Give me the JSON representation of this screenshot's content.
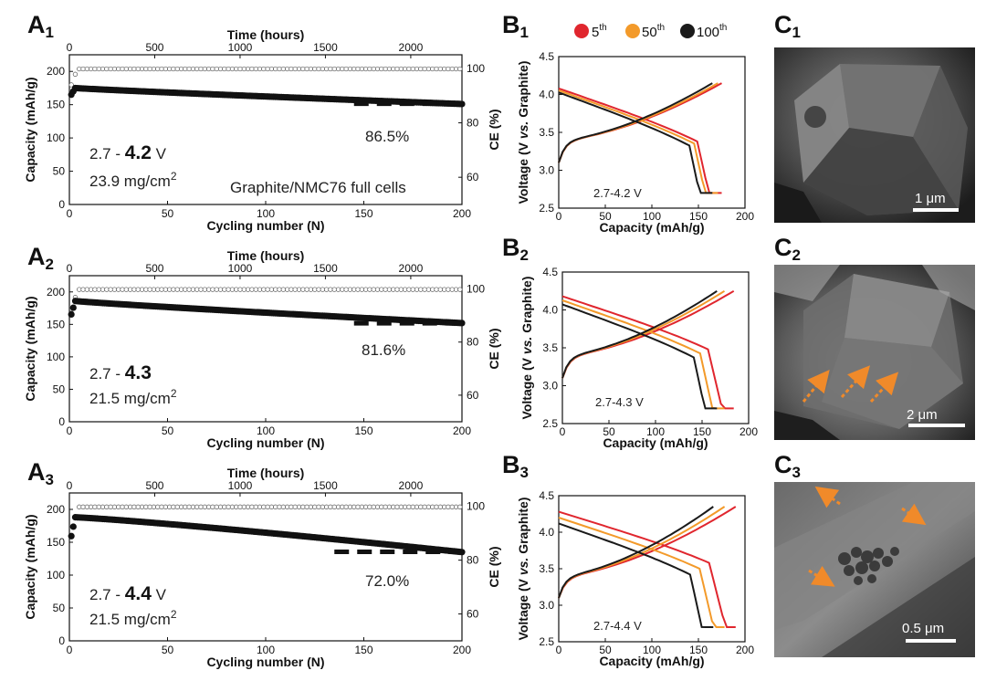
{
  "panels": {
    "A1": {
      "letter": "A",
      "num": "1",
      "ratio_prefix": "2.7 - ",
      "ratio_bold": "4.2",
      "ratio_unit": " V",
      "loading": "23.9 mg/cm",
      "loading_sup": "2",
      "retention": "86.5%",
      "cells_label": "Graphite/NMC76 full cells"
    },
    "A2": {
      "letter": "A",
      "num": "2",
      "ratio_prefix": "2.7 - ",
      "ratio_bold": "4.3",
      "ratio_unit": "",
      "loading": "21.5 mg/cm",
      "loading_sup": "2",
      "retention": "81.6%"
    },
    "A3": {
      "letter": "A",
      "num": "3",
      "ratio_prefix": "2.7 - ",
      "ratio_bold": "4.4",
      "ratio_unit": " V",
      "loading": "21.5 mg/cm",
      "loading_sup": "2",
      "retention": "72.0%"
    },
    "B1": {
      "letter": "B",
      "num": "1",
      "window": "2.7-4.2 V"
    },
    "B2": {
      "letter": "B",
      "num": "2",
      "window": "2.7-4.3 V"
    },
    "B3": {
      "letter": "B",
      "num": "3",
      "window": "2.7-4.4 V"
    },
    "C1": {
      "letter": "C",
      "num": "1",
      "scale": "1 μm"
    },
    "C2": {
      "letter": "C",
      "num": "2",
      "scale": "2 μm"
    },
    "C3": {
      "letter": "C",
      "num": "3",
      "scale": "0.5 μm"
    }
  },
  "labels": {
    "cycling_x": "Cycling number (N)",
    "time_x": "Time (hours)",
    "capacity_y": "Capacity (mAh/g)",
    "ce_y": "CE (%)",
    "voltage_y_pre": "Voltage (V ",
    "voltage_y_it": "vs.",
    "voltage_y_post": " Graphite)",
    "capacity_x": "Capacity (mAh/g)"
  },
  "legend": [
    {
      "label": "5",
      "sup": "th",
      "color": "#e0262e"
    },
    {
      "label": "50",
      "sup": "th",
      "color": "#f39a2a"
    },
    {
      "label": "100",
      "sup": "th",
      "color": "#1a1a1a"
    }
  ],
  "colors": {
    "red": "#e0262e",
    "orange": "#f39a2a",
    "black": "#1a1a1a",
    "arrow": "#f08a2a"
  },
  "chart_data": [
    {
      "id": "A1",
      "type": "scatter",
      "xlabel": "Cycling number (N)",
      "ylabel": "Capacity (mAh/g)",
      "y2label": "CE (%)",
      "top_xlabel": "Time (hours)",
      "xlim": [
        0,
        200
      ],
      "ylim": [
        0,
        225
      ],
      "y2ticks": [
        60,
        80,
        100
      ],
      "top_ticks": [
        0,
        500,
        1000,
        1500,
        2000
      ],
      "top_xlim": [
        0,
        2300
      ],
      "xticks": [
        0,
        50,
        100,
        150,
        200
      ],
      "yticks": [
        0,
        50,
        100,
        150,
        200
      ],
      "capacity": {
        "start": 175,
        "end": 151,
        "initial_low": 160
      },
      "ce": {
        "start": 92,
        "plateau": 99.8
      },
      "retention_percent": 86.5
    },
    {
      "id": "A2",
      "type": "scatter",
      "xlabel": "Cycling number (N)",
      "ylabel": "Capacity (mAh/g)",
      "y2label": "CE (%)",
      "top_xlabel": "Time (hours)",
      "xlim": [
        0,
        200
      ],
      "ylim": [
        0,
        225
      ],
      "y2ticks": [
        60,
        80,
        100
      ],
      "top_ticks": [
        0,
        500,
        1000,
        1500,
        2000
      ],
      "top_xlim": [
        0,
        2300
      ],
      "xticks": [
        0,
        50,
        100,
        150,
        200
      ],
      "yticks": [
        0,
        50,
        100,
        150,
        200
      ],
      "capacity": {
        "start": 186,
        "end": 152,
        "initial_low": 155
      },
      "ce": {
        "start": 88,
        "plateau": 99.8
      },
      "retention_percent": 81.6
    },
    {
      "id": "A3",
      "type": "scatter",
      "xlabel": "Cycling number (N)",
      "ylabel": "Capacity (mAh/g)",
      "y2label": "CE (%)",
      "top_xlabel": "Time (hours)",
      "xlim": [
        0,
        200
      ],
      "ylim": [
        0,
        225
      ],
      "y2ticks": [
        60,
        80,
        100
      ],
      "top_ticks": [
        0,
        500,
        1000,
        1500,
        2000
      ],
      "top_xlim": [
        0,
        2300
      ],
      "xticks": [
        0,
        50,
        100,
        150,
        200
      ],
      "yticks": [
        0,
        50,
        100,
        150,
        200
      ],
      "capacity": {
        "start": 188,
        "end": 135,
        "initial_low": 145
      },
      "ce": {
        "start": 85,
        "plateau": 99.8
      },
      "retention_percent": 72.0
    },
    {
      "id": "B1",
      "type": "line",
      "xlabel": "Capacity (mAh/g)",
      "ylabel": "Voltage (V vs. Graphite)",
      "xlim": [
        0,
        200
      ],
      "ylim": [
        2.5,
        4.5
      ],
      "xticks": [
        0,
        50,
        100,
        150,
        200
      ],
      "yticks": [
        2.5,
        3.0,
        3.5,
        4.0,
        4.5
      ],
      "upper_v": 4.2,
      "series": [
        {
          "name": "5th",
          "color": "#e0262e",
          "cap": 175
        },
        {
          "name": "50th",
          "color": "#f39a2a",
          "cap": 171
        },
        {
          "name": "100th",
          "color": "#1a1a1a",
          "cap": 165
        }
      ]
    },
    {
      "id": "B2",
      "type": "line",
      "xlabel": "Capacity (mAh/g)",
      "ylabel": "Voltage (V vs. Graphite)",
      "xlim": [
        0,
        200
      ],
      "ylim": [
        2.5,
        4.5
      ],
      "xticks": [
        0,
        50,
        100,
        150,
        200
      ],
      "yticks": [
        2.5,
        3.0,
        3.5,
        4.0,
        4.5
      ],
      "upper_v": 4.3,
      "series": [
        {
          "name": "5th",
          "color": "#e0262e",
          "cap": 184
        },
        {
          "name": "50th",
          "color": "#f39a2a",
          "cap": 174
        },
        {
          "name": "100th",
          "color": "#1a1a1a",
          "cap": 166
        }
      ]
    },
    {
      "id": "B3",
      "type": "line",
      "xlabel": "Capacity (mAh/g)",
      "ylabel": "Voltage (V vs. Graphite)",
      "xlim": [
        0,
        200
      ],
      "ylim": [
        2.5,
        4.5
      ],
      "xticks": [
        0,
        50,
        100,
        150,
        200
      ],
      "yticks": [
        2.5,
        3.0,
        3.5,
        4.0,
        4.5
      ],
      "upper_v": 4.4,
      "series": [
        {
          "name": "5th",
          "color": "#e0262e",
          "cap": 190
        },
        {
          "name": "50th",
          "color": "#f39a2a",
          "cap": 178
        },
        {
          "name": "100th",
          "color": "#1a1a1a",
          "cap": 166
        }
      ]
    }
  ]
}
